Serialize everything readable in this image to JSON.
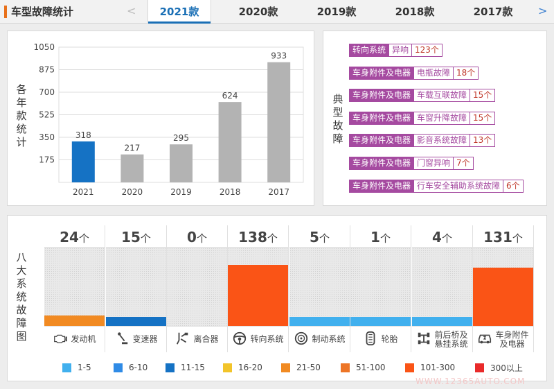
{
  "header": {
    "title": "车型故障统计",
    "prev_arrow": "<",
    "next_arrow": ">",
    "tabs": [
      {
        "label": "2021款",
        "active": true
      },
      {
        "label": "2020款",
        "active": false
      },
      {
        "label": "2019款",
        "active": false
      },
      {
        "label": "2018款",
        "active": false
      },
      {
        "label": "2017款",
        "active": false
      }
    ]
  },
  "chart_data": [
    {
      "type": "bar",
      "title": "",
      "ylabel": "各年款统计",
      "xlabel": "",
      "categories": [
        "2021",
        "2020",
        "2019",
        "2018",
        "2017"
      ],
      "values": [
        318,
        217,
        295,
        624,
        933
      ],
      "yticks": [
        175,
        350,
        525,
        700,
        875,
        1050
      ],
      "ylim": [
        0,
        1050
      ],
      "colors": [
        "#1572c4",
        "#b3b3b3",
        "#b3b3b3",
        "#b3b3b3",
        "#b3b3b3"
      ],
      "grid": true
    },
    {
      "type": "bar",
      "title": "",
      "ylabel": "八大系统故障图",
      "categories": [
        "发动机",
        "变速器",
        "离合器",
        "转向系统",
        "制动系统",
        "轮胎",
        "前后桥及悬挂系统",
        "车身附件及电器"
      ],
      "label_lines": [
        [
          "发动机"
        ],
        [
          "变速器"
        ],
        [
          "离合器"
        ],
        [
          "转向系统"
        ],
        [
          "制动系统"
        ],
        [
          "轮胎"
        ],
        [
          "前后桥及",
          "悬挂系统"
        ],
        [
          "车身附件",
          "及电器"
        ]
      ],
      "values": [
        24,
        15,
        0,
        138,
        5,
        1,
        4,
        131
      ],
      "count_unit": "个",
      "icons": [
        "engine-icon",
        "gear-shift-icon",
        "clutch-pedal-icon",
        "steering-wheel-icon",
        "brake-disc-icon",
        "tire-icon",
        "axle-icon",
        "car-body-icon"
      ],
      "legend": [
        {
          "label": "1-5",
          "color": "#41b0ee",
          "min": 1,
          "max": 5
        },
        {
          "label": "6-10",
          "color": "#2f8be6",
          "min": 6,
          "max": 10
        },
        {
          "label": "11-15",
          "color": "#1572c4",
          "min": 11,
          "max": 15
        },
        {
          "label": "16-20",
          "color": "#f2c42a",
          "min": 16,
          "max": 20
        },
        {
          "label": "21-50",
          "color": "#f18a22",
          "min": 21,
          "max": 50
        },
        {
          "label": "51-100",
          "color": "#ed7526",
          "min": 51,
          "max": 100
        },
        {
          "label": "101-300",
          "color": "#fa5416",
          "min": 101,
          "max": 300
        },
        {
          "label": "300以上",
          "color": "#e92a2a",
          "min": 301,
          "max": 100000
        }
      ]
    }
  ],
  "typical_faults": {
    "title": "典型故障",
    "items": [
      {
        "category": "转向系统",
        "name": "异响",
        "count": "123个"
      },
      {
        "category": "车身附件及电器",
        "name": "电瓶故障",
        "count": "18个"
      },
      {
        "category": "车身附件及电器",
        "name": "车载互联故障",
        "count": "15个"
      },
      {
        "category": "车身附件及电器",
        "name": "车窗升降故障",
        "count": "15个"
      },
      {
        "category": "车身附件及电器",
        "name": "影音系统故障",
        "count": "13个"
      },
      {
        "category": "车身附件及电器",
        "name": "门窗异响",
        "count": "7个"
      },
      {
        "category": "车身附件及电器",
        "name": "行车安全辅助系统故障",
        "count": "6个"
      }
    ]
  },
  "watermark": "WWW.12365AUTO.COM"
}
